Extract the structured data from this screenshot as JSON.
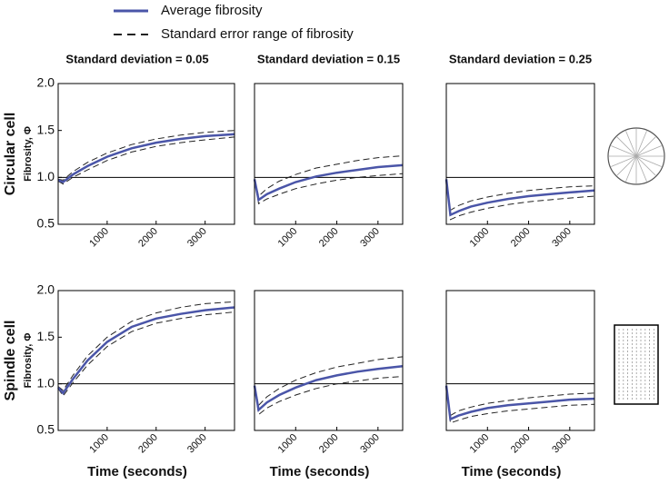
{
  "legend": {
    "entries": [
      {
        "label": "Average fibrosity",
        "color": "#4a55a8",
        "dashed": false
      },
      {
        "label": "Standard error range of fibrosity",
        "color": "#222222",
        "dashed": true
      }
    ]
  },
  "chart_data": [
    {
      "type": "line",
      "title": "Standard deviation = 0.05",
      "row_label": "Circular cell",
      "ylabel": "Fibrosity, Φ",
      "x": [
        0,
        100,
        300,
        600,
        1000,
        1500,
        2000,
        2500,
        3000,
        3600
      ],
      "mean": [
        0.97,
        0.95,
        1.03,
        1.12,
        1.22,
        1.31,
        1.37,
        1.41,
        1.44,
        1.46
      ],
      "upper": [
        0.98,
        0.97,
        1.06,
        1.16,
        1.26,
        1.35,
        1.41,
        1.45,
        1.48,
        1.5
      ],
      "lower": [
        0.96,
        0.93,
        1.0,
        1.08,
        1.18,
        1.27,
        1.33,
        1.37,
        1.4,
        1.43
      ],
      "xlim": [
        0,
        3600
      ],
      "xticks": [
        1000,
        2000,
        3000
      ],
      "ylim": [
        0.5,
        2
      ],
      "yticks": [
        0.5,
        {
          "value": 1,
          "label": "1.0"
        },
        1.5,
        {
          "value": 2,
          "label": "2.0"
        }
      ],
      "hline": 1
    },
    {
      "type": "line",
      "title": "Standard deviation = 0.15",
      "x": [
        0,
        100,
        300,
        600,
        1000,
        1500,
        2000,
        2500,
        3000,
        3600
      ],
      "mean": [
        0.98,
        0.76,
        0.82,
        0.88,
        0.95,
        1.01,
        1.05,
        1.08,
        1.11,
        1.13
      ],
      "upper": [
        0.98,
        0.8,
        0.88,
        0.96,
        1.03,
        1.1,
        1.14,
        1.18,
        1.21,
        1.23
      ],
      "lower": [
        0.98,
        0.72,
        0.77,
        0.82,
        0.88,
        0.93,
        0.97,
        1.0,
        1.02,
        1.04
      ],
      "xlim": [
        0,
        3600
      ],
      "xticks": [
        1000,
        2000,
        3000
      ],
      "ylim": [
        0.5,
        2
      ],
      "hline": 1
    },
    {
      "type": "line",
      "title": "Standard deviation = 0.25",
      "x": [
        0,
        100,
        300,
        600,
        1000,
        1500,
        2000,
        2500,
        3000,
        3600
      ],
      "mean": [
        0.98,
        0.6,
        0.64,
        0.69,
        0.73,
        0.77,
        0.8,
        0.82,
        0.84,
        0.86
      ],
      "upper": [
        0.98,
        0.65,
        0.7,
        0.75,
        0.79,
        0.83,
        0.86,
        0.88,
        0.9,
        0.91
      ],
      "lower": [
        0.98,
        0.55,
        0.59,
        0.63,
        0.67,
        0.71,
        0.74,
        0.76,
        0.78,
        0.8
      ],
      "xlim": [
        0,
        3600
      ],
      "xticks": [
        1000,
        2000,
        3000
      ],
      "ylim": [
        0.5,
        2
      ],
      "hline": 1
    },
    {
      "type": "line",
      "row_label": "Spindle cell",
      "ylabel": "Fibrosity, Φ",
      "xlabel": "Time (seconds)",
      "x": [
        0,
        100,
        300,
        600,
        1000,
        1500,
        2000,
        2500,
        3000,
        3600
      ],
      "mean": [
        0.96,
        0.9,
        1.05,
        1.25,
        1.45,
        1.61,
        1.7,
        1.75,
        1.79,
        1.82
      ],
      "upper": [
        0.97,
        0.93,
        1.09,
        1.3,
        1.5,
        1.67,
        1.76,
        1.82,
        1.86,
        1.88
      ],
      "lower": [
        0.95,
        0.87,
        1.01,
        1.2,
        1.4,
        1.56,
        1.65,
        1.7,
        1.74,
        1.77
      ],
      "xlim": [
        0,
        3600
      ],
      "xticks": [
        1000,
        2000,
        3000
      ],
      "ylim": [
        0.5,
        2
      ],
      "yticks": [
        0.5,
        {
          "value": 1,
          "label": "1.0"
        },
        1.5,
        {
          "value": 2,
          "label": "2.0"
        }
      ],
      "hline": 1
    },
    {
      "type": "line",
      "xlabel": "Time (seconds)",
      "x": [
        0,
        100,
        300,
        600,
        1000,
        1500,
        2000,
        2500,
        3000,
        3600
      ],
      "mean": [
        0.98,
        0.72,
        0.8,
        0.88,
        0.96,
        1.04,
        1.09,
        1.13,
        1.16,
        1.19
      ],
      "upper": [
        0.98,
        0.77,
        0.86,
        0.95,
        1.04,
        1.12,
        1.18,
        1.22,
        1.26,
        1.29
      ],
      "lower": [
        0.98,
        0.67,
        0.74,
        0.81,
        0.88,
        0.95,
        1.0,
        1.03,
        1.06,
        1.08
      ],
      "xlim": [
        0,
        3600
      ],
      "xticks": [
        1000,
        2000,
        3000
      ],
      "ylim": [
        0.5,
        2
      ],
      "hline": 1
    },
    {
      "type": "line",
      "xlabel": "Time (seconds)",
      "x": [
        0,
        100,
        300,
        600,
        1000,
        1500,
        2000,
        2500,
        3000,
        3600
      ],
      "mean": [
        0.98,
        0.62,
        0.66,
        0.7,
        0.74,
        0.77,
        0.79,
        0.81,
        0.83,
        0.84
      ],
      "upper": [
        0.98,
        0.66,
        0.71,
        0.75,
        0.79,
        0.82,
        0.85,
        0.87,
        0.89,
        0.9
      ],
      "lower": [
        0.98,
        0.58,
        0.61,
        0.65,
        0.68,
        0.71,
        0.73,
        0.75,
        0.77,
        0.78
      ],
      "xlim": [
        0,
        3600
      ],
      "xticks": [
        1000,
        2000,
        3000
      ],
      "ylim": [
        0.5,
        2
      ],
      "hline": 1
    }
  ]
}
